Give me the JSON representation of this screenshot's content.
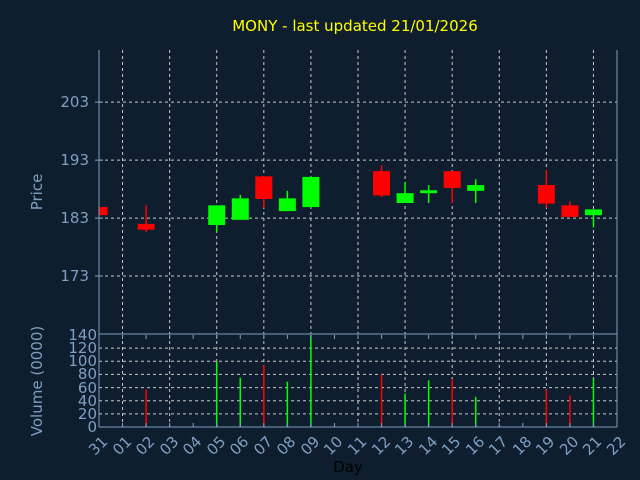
{
  "chart_data": [
    {
      "type": "candlestick",
      "title": "MONY - last updated 21/01/2026",
      "ylabel": "Price",
      "xlabel": "Day",
      "ylim": [
        163,
        212
      ],
      "yticks": [
        173,
        183,
        193,
        203
      ],
      "grid": true,
      "colors": {
        "up": "#00ff00",
        "down": "#ff0000",
        "title": "#ffff00",
        "axis": "#7f9fc4",
        "background": "#0f1e2e"
      },
      "x_labels": [
        "31",
        "01",
        "02",
        "03",
        "04",
        "05",
        "06",
        "07",
        "08",
        "09",
        "10",
        "11",
        "12",
        "13",
        "14",
        "15",
        "16",
        "17",
        "18",
        "19",
        "20",
        "21",
        "22"
      ],
      "candles": [
        {
          "day": "31",
          "open": 184.9,
          "high": 184.9,
          "low": 183.5,
          "close": 183.5
        },
        {
          "day": "02",
          "open": 182.0,
          "high": 185.2,
          "low": 180.6,
          "close": 181.0
        },
        {
          "day": "05",
          "open": 181.8,
          "high": 185.2,
          "low": 180.6,
          "close": 185.2
        },
        {
          "day": "06",
          "open": 182.7,
          "high": 187.0,
          "low": 182.7,
          "close": 186.4
        },
        {
          "day": "07",
          "open": 190.2,
          "high": 190.2,
          "low": 184.8,
          "close": 186.3
        },
        {
          "day": "08",
          "open": 184.2,
          "high": 187.7,
          "low": 184.2,
          "close": 186.4
        },
        {
          "day": "09",
          "open": 184.9,
          "high": 190.1,
          "low": 184.9,
          "close": 190.1
        },
        {
          "day": "12",
          "open": 191.1,
          "high": 192.1,
          "low": 186.6,
          "close": 186.9
        },
        {
          "day": "13",
          "open": 185.6,
          "high": 189.2,
          "low": 185.6,
          "close": 187.3
        },
        {
          "day": "14",
          "open": 187.3,
          "high": 188.7,
          "low": 185.6,
          "close": 187.8
        },
        {
          "day": "15",
          "open": 191.1,
          "high": 191.1,
          "low": 185.6,
          "close": 188.2
        },
        {
          "day": "16",
          "open": 187.7,
          "high": 189.7,
          "low": 185.6,
          "close": 188.7
        },
        {
          "day": "19",
          "open": 188.7,
          "high": 191.3,
          "low": 184.8,
          "close": 185.5
        },
        {
          "day": "20",
          "open": 185.2,
          "high": 185.9,
          "low": 183.2,
          "close": 183.2
        },
        {
          "day": "21",
          "open": 183.5,
          "high": 184.5,
          "low": 181.4,
          "close": 184.5
        }
      ]
    },
    {
      "type": "bar",
      "ylabel": "Volume (0000)",
      "xlabel": "Day",
      "ylim": [
        0,
        140
      ],
      "yticks": [
        0,
        20,
        40,
        60,
        80,
        100,
        120,
        140
      ],
      "grid": true,
      "bars": [
        {
          "day": "02",
          "value": 57,
          "direction": "down"
        },
        {
          "day": "05",
          "value": 99,
          "direction": "up"
        },
        {
          "day": "06",
          "value": 75,
          "direction": "up"
        },
        {
          "day": "07",
          "value": 94,
          "direction": "down"
        },
        {
          "day": "08",
          "value": 69,
          "direction": "up"
        },
        {
          "day": "09",
          "value": 140,
          "direction": "up"
        },
        {
          "day": "12",
          "value": 80,
          "direction": "down"
        },
        {
          "day": "13",
          "value": 51,
          "direction": "up"
        },
        {
          "day": "14",
          "value": 71,
          "direction": "up"
        },
        {
          "day": "15",
          "value": 73,
          "direction": "down"
        },
        {
          "day": "16",
          "value": 46,
          "direction": "up"
        },
        {
          "day": "19",
          "value": 57,
          "direction": "down"
        },
        {
          "day": "20",
          "value": 48,
          "direction": "down"
        },
        {
          "day": "21",
          "value": 74,
          "direction": "up"
        }
      ]
    }
  ]
}
